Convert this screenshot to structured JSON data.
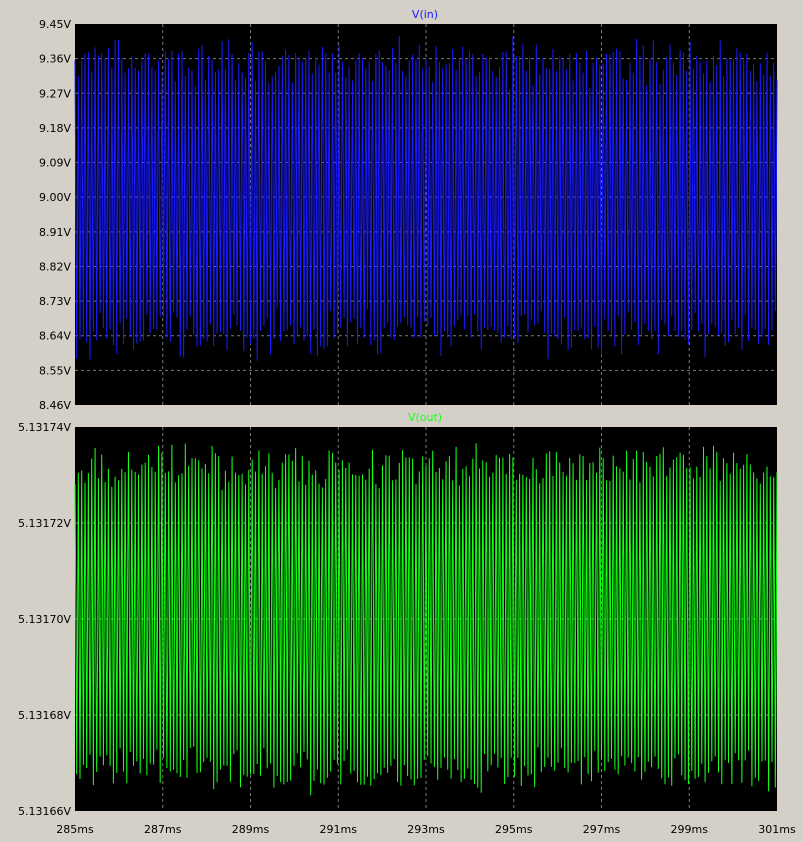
{
  "colors": {
    "background": "#d4d0c8",
    "plot_bg": "#000000",
    "grid": "#7a7a7a",
    "trace_in": "#1a1aff",
    "trace_out": "#18ff18"
  },
  "chart_data": [
    {
      "type": "line",
      "title": "V(in)",
      "xlabel": "",
      "ylabel": "",
      "grid": true,
      "xlim": [
        285,
        301
      ],
      "ylim": [
        8.46,
        9.45
      ],
      "x_ticks": [
        "285ms",
        "287ms",
        "289ms",
        "291ms",
        "293ms",
        "295ms",
        "297ms",
        "299ms",
        "301ms"
      ],
      "y_ticks": [
        "9.45V",
        "9.36V",
        "9.27V",
        "9.18V",
        "9.09V",
        "9.00V",
        "8.91V",
        "8.82V",
        "8.73V",
        "8.64V",
        "8.55V",
        "8.46V"
      ],
      "series": [
        {
          "name": "V(in)",
          "color": "#1a1aff",
          "center": 9.0,
          "amplitude_min": 0.26,
          "amplitude_max": 0.4,
          "oscillations": 420
        }
      ]
    },
    {
      "type": "line",
      "title": "V(out)",
      "xlabel": "",
      "ylabel": "",
      "grid": true,
      "xlim": [
        285,
        301
      ],
      "ylim": [
        5.13166,
        5.13174
      ],
      "x_ticks": [
        "285ms",
        "287ms",
        "289ms",
        "291ms",
        "293ms",
        "295ms",
        "297ms",
        "299ms",
        "301ms"
      ],
      "y_ticks": [
        "5.13174V",
        "5.13172V",
        "5.13170V",
        "5.13168V",
        "5.13166V"
      ],
      "series": [
        {
          "name": "V(out)",
          "color": "#18ff18",
          "center": 5.1317,
          "amplitude_min": 2.4e-05,
          "amplitude_max": 3.55e-05,
          "oscillations": 420
        }
      ]
    }
  ]
}
